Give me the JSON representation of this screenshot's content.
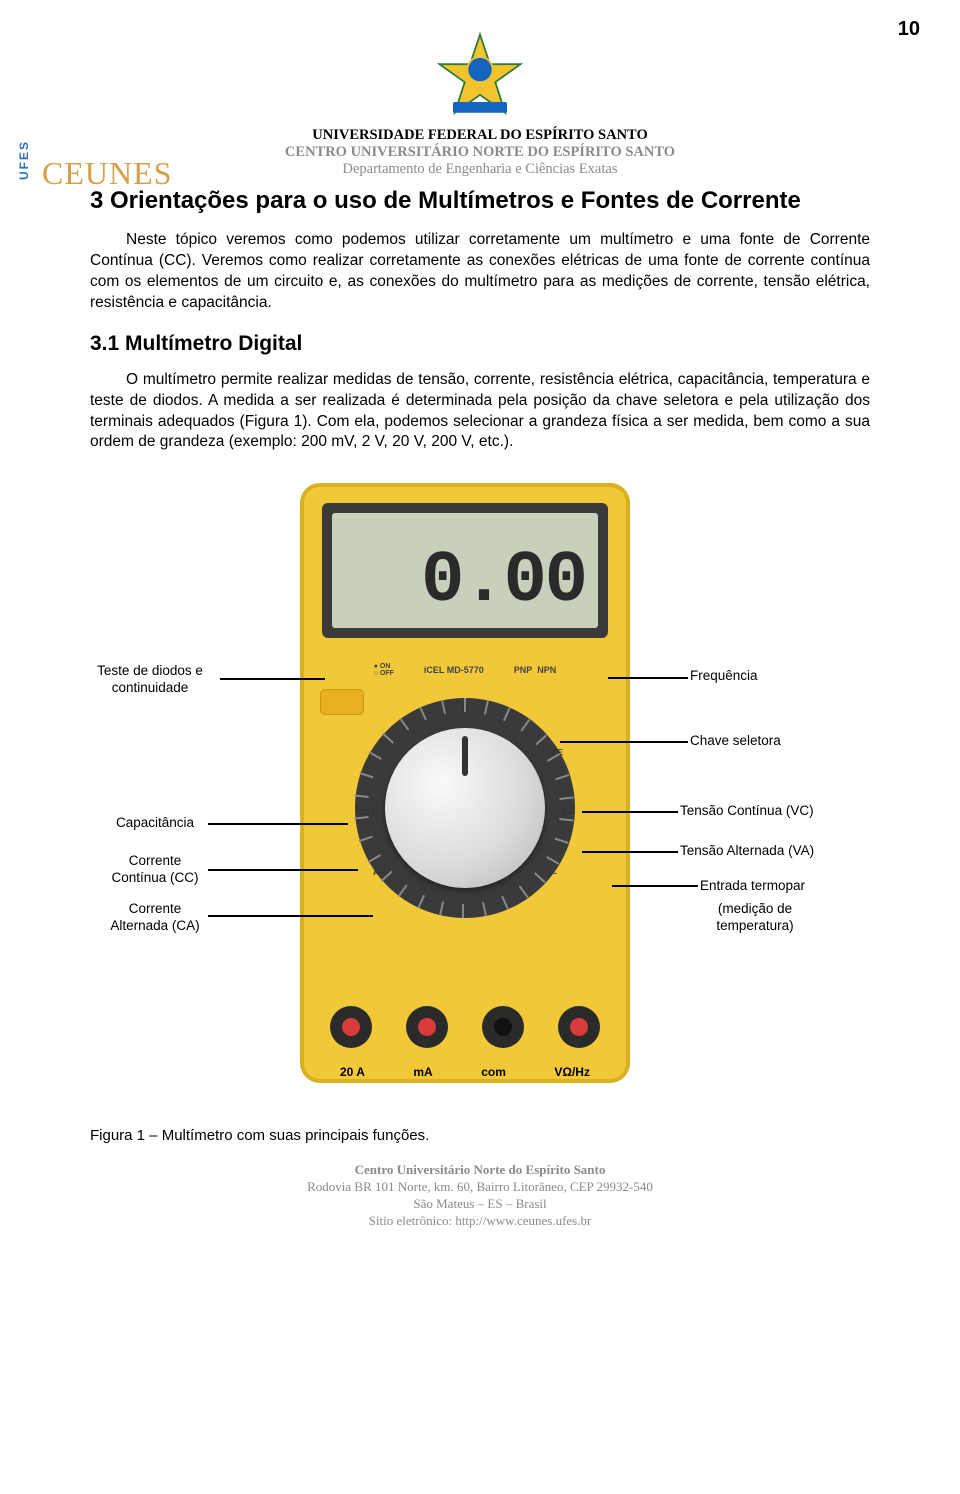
{
  "page_number": "10",
  "header": {
    "line1": "UNIVERSIDADE FEDERAL DO ESPÍRITO SANTO",
    "line2": "CENTRO UNIVERSITÁRIO NORTE DO ESPÍRITO SANTO",
    "line3": "Departamento de Engenharia e Ciências Exatas",
    "side_logo_text": "UFES",
    "ceunes": "CEUNES"
  },
  "section_title": "3  Orientações para o uso de Multímetros e Fontes de Corrente",
  "para1": "Neste tópico veremos como podemos utilizar corretamente um multímetro e uma fonte de Corrente Contínua (CC). Veremos como realizar corretamente as conexões elétricas de uma fonte de corrente contínua com os elementos de um circuito e, as conexões do multímetro para as medições de corrente, tensão elétrica, resistência e capacitância.",
  "subsection_title": "3.1  Multímetro Digital",
  "para2": "O multímetro permite realizar medidas de tensão, corrente, resistência elétrica, capacitância, temperatura e teste de diodos. A medida a ser realizada é determinada pela posição da chave seletora e pela utilização dos terminais adequados (Figura 1). Com ela, podemos selecionar a grandeza física a ser medida, bem como a sua ordem de grandeza (exemplo: 200 mV, 2 V, 20 V, 200 V, etc.).",
  "display_value": "0.00",
  "mm_model": "iCEL  MD-5770",
  "mm_pnp": "PNP",
  "mm_npn": "NPN",
  "annotations": {
    "diode": "Teste de diodos e continuidade",
    "freq": "Frequência",
    "selector": "Chave seletora",
    "cap": "Capacitância",
    "cc": "Corrente Contínua (CC)",
    "ca": "Corrente Alternada (CA)",
    "vc": "Tensão Contínua (VC)",
    "va": "Tensão Alternada (VA)",
    "thermo": "Entrada termopar",
    "temp": "(medição de temperatura)"
  },
  "jack_labels": {
    "a": "20 A",
    "b": "mA",
    "c": "com",
    "d": "VΩ/Hz"
  },
  "fig_caption": "Figura 1 – Multímetro com suas principais funções.",
  "footer": {
    "l1": "Centro Universitário Norte do Espírito Santo",
    "l2": "Rodovia BR 101 Norte, km. 60, Bairro Litorâneo, CEP 29932-540",
    "l3": "São Mateus – ES – Brasil",
    "l4": "Sítio eletrônico: http://www.ceunes.ufes.br"
  }
}
